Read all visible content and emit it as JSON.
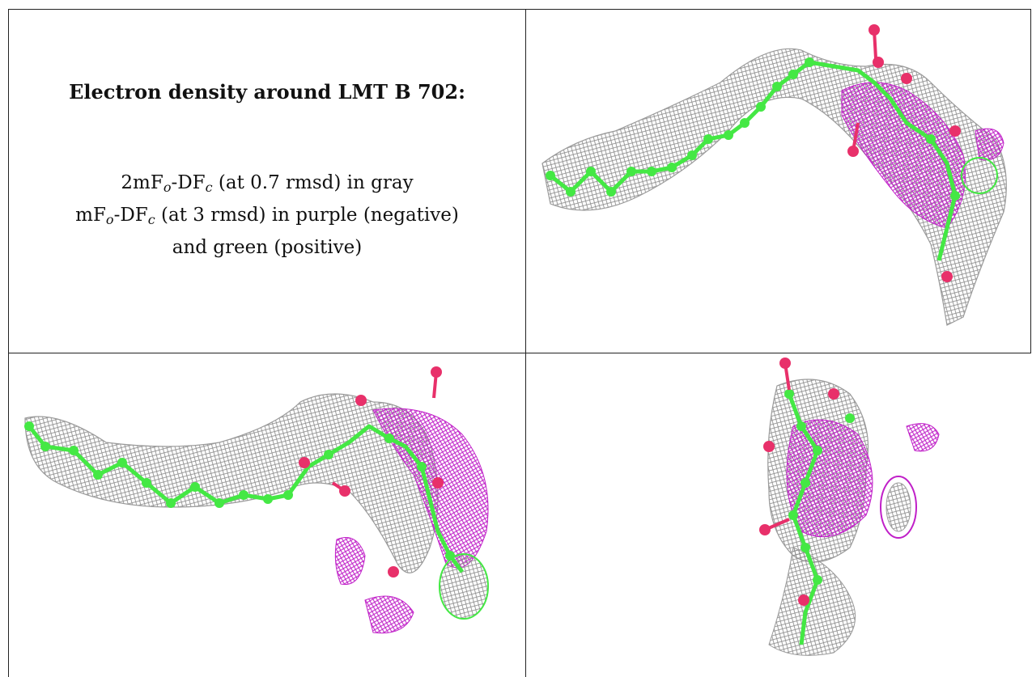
{
  "title": "Electron density around LMT B 702:",
  "legend": {
    "line1_pre": "2mF",
    "line1_sub_o": "o",
    "line1_mid": "-DF",
    "line1_sub_c": "c",
    "line1_post": " (at 0.7 rmsd) in gray",
    "line2_pre": "mF",
    "line2_sub_o": "o",
    "line2_mid": "-DF",
    "line2_sub_c": "c",
    "line2_post": " (at 3 rmsd) in purple (negative)",
    "line3": "and green (positive)"
  },
  "colors": {
    "mesh_gray": "#8a8a8a",
    "mesh_purple": "#c020c8",
    "carbon_green": "#44e844",
    "oxygen_pink": "#e8306a"
  },
  "panels": [
    {
      "name": "view-top-right"
    },
    {
      "name": "view-bottom-left"
    },
    {
      "name": "view-bottom-right"
    }
  ]
}
